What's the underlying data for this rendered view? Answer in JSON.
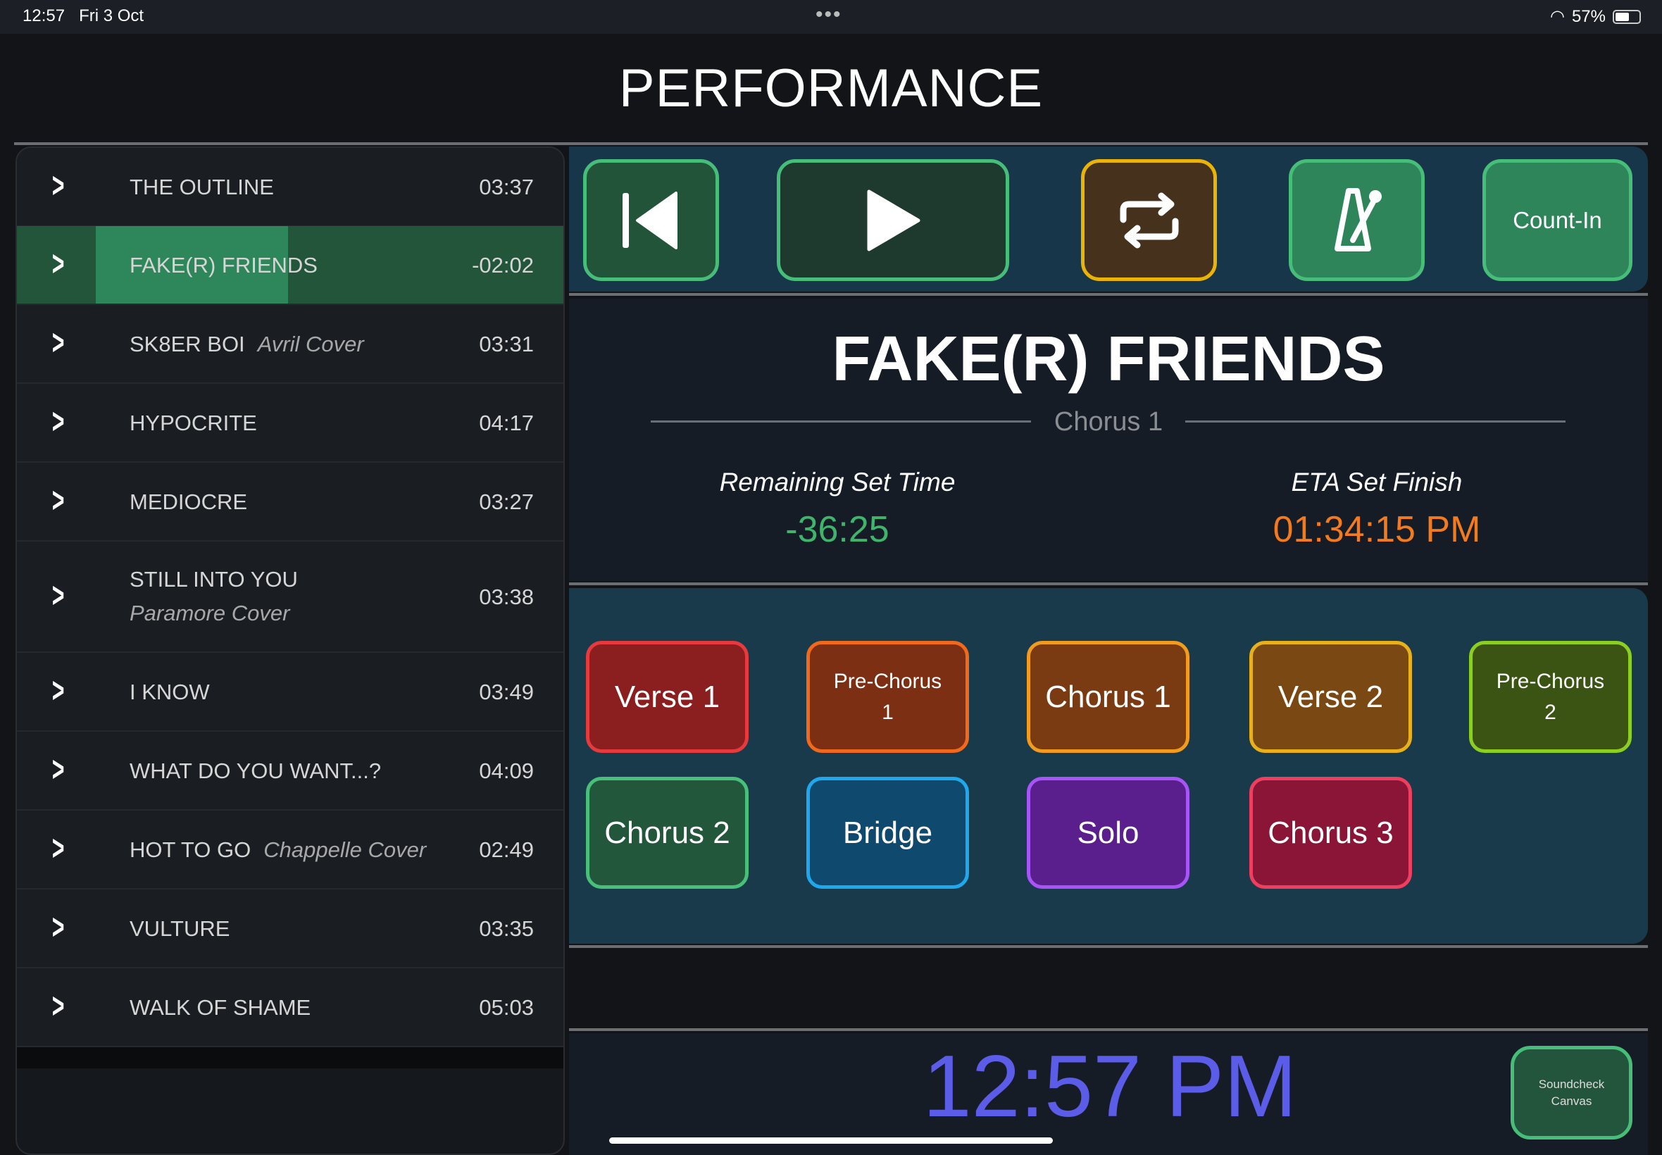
{
  "status_bar": {
    "time": "12:57",
    "date": "Fri 3 Oct",
    "battery": "57%",
    "battery_level": 0.57
  },
  "header": {
    "title": "PERFORMANCE"
  },
  "setlist": [
    {
      "title": "THE OUTLINE",
      "cover": "",
      "time": "03:37"
    },
    {
      "title": "FAKE(R) FRIENDS",
      "cover": "",
      "time": "-02:02",
      "playing": true,
      "progress": 0.35
    },
    {
      "title": "SK8ER BOI",
      "cover": "Avril Cover",
      "time": "03:31"
    },
    {
      "title": "HYPOCRITE",
      "cover": "",
      "time": "04:17"
    },
    {
      "title": "MEDIOCRE",
      "cover": "",
      "time": "03:27"
    },
    {
      "title": "STILL INTO YOU",
      "cover": "Paramore Cover",
      "time": "03:38"
    },
    {
      "title": "I KNOW",
      "cover": "",
      "time": "03:49"
    },
    {
      "title": "WHAT DO YOU WANT...?",
      "cover": "",
      "time": "04:09"
    },
    {
      "title": "HOT TO GO",
      "cover": "Chappelle Cover",
      "time": "02:49"
    },
    {
      "title": "VULTURE",
      "cover": "",
      "time": "03:35"
    },
    {
      "title": "WALK OF SHAME",
      "cover": "",
      "time": "05:03"
    }
  ],
  "transport": {
    "previous_icon": "skip-back-icon",
    "play_icon": "play-icon",
    "loop_icon": "repeat-icon",
    "metronome_icon": "metronome-icon",
    "count_in": "Count-In"
  },
  "now_playing": {
    "title": "FAKE(R) FRIENDS",
    "section": "Chorus 1",
    "remaining_label": "Remaining Set Time",
    "remaining_value": "-36:25",
    "eta_label": "ETA Set Finish",
    "eta_value": "01:34:15 PM"
  },
  "sections": [
    {
      "label": "Verse 1",
      "bg": "#8b1e1e",
      "border": "#e83a3c"
    },
    {
      "label": "Pre-Chorus 1",
      "bg": "#7c2f12",
      "border": "#f0691c",
      "small": true
    },
    {
      "label": "Chorus 1",
      "bg": "#7a3a12",
      "border": "#f29b1c"
    },
    {
      "label": "Verse 2",
      "bg": "#7a4812",
      "border": "#eab018"
    },
    {
      "label": "Pre-Chorus 2",
      "bg": "#3b5414",
      "border": "#8ccf1e",
      "small": true
    },
    {
      "label": "Chorus 2",
      "bg": "#22573c",
      "border": "#48c07a"
    },
    {
      "label": "Bridge",
      "bg": "#0f4a6e",
      "border": "#1fa8ee"
    },
    {
      "label": "Solo",
      "bg": "#5a1f8c",
      "border": "#a855f7"
    },
    {
      "label": "Chorus 3",
      "bg": "#8a1537",
      "border": "#ee3f60"
    }
  ],
  "clock": {
    "time": "12:57 PM"
  },
  "soundcheck": {
    "label_line1": "Soundcheck",
    "label_line2": "Canvas"
  }
}
